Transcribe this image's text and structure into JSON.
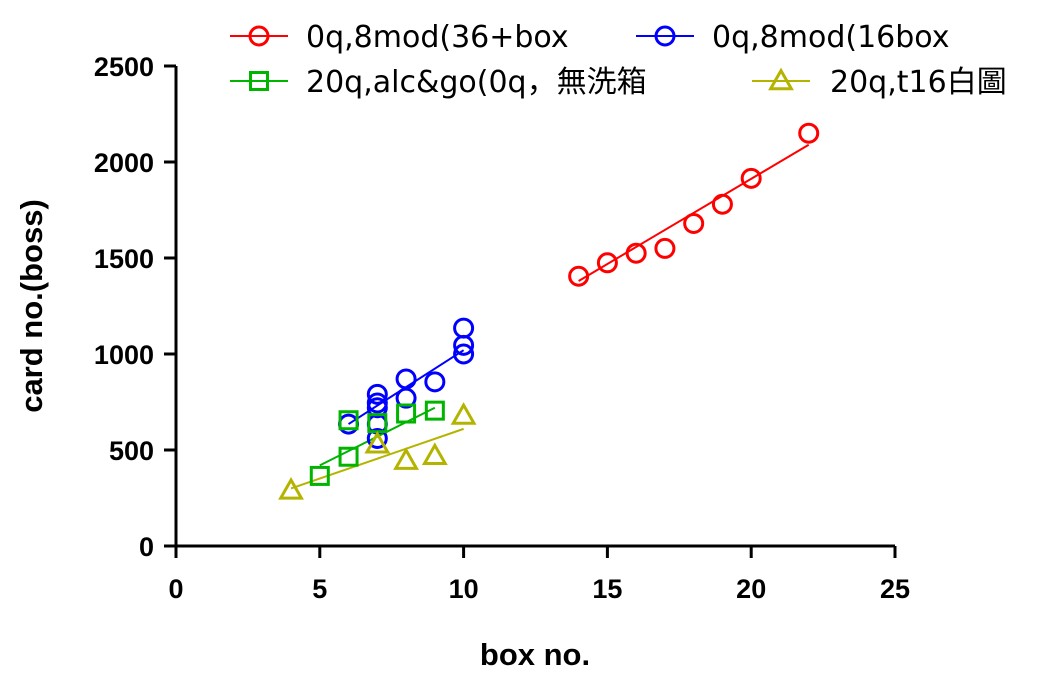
{
  "chart_data": {
    "type": "scatter",
    "title": "",
    "xlabel": "box no.",
    "ylabel": "card no.(boss)",
    "xlim": [
      0,
      25
    ],
    "ylim": [
      0,
      2500
    ],
    "xticks": [
      0,
      5,
      10,
      15,
      20,
      25
    ],
    "yticks": [
      0,
      500,
      1000,
      1500,
      2000,
      2500
    ],
    "grid": false,
    "legend_position": "top",
    "series": [
      {
        "name": "0q,8mod(36+box",
        "color": "#ff0000",
        "marker": "circle",
        "points": [
          [
            14,
            1405
          ],
          [
            15,
            1475
          ],
          [
            16,
            1525
          ],
          [
            17,
            1550
          ],
          [
            18,
            1680
          ],
          [
            19,
            1780
          ],
          [
            20,
            1915
          ],
          [
            22,
            2150
          ]
        ],
        "fit": [
          [
            14,
            1380
          ],
          [
            22,
            2090
          ]
        ]
      },
      {
        "name": "0q,8mod(16box",
        "color": "#0000ff",
        "marker": "circle",
        "points": [
          [
            6,
            635
          ],
          [
            7,
            560
          ],
          [
            7,
            635
          ],
          [
            7,
            720
          ],
          [
            7,
            745
          ],
          [
            7,
            790
          ],
          [
            8,
            770
          ],
          [
            8,
            870
          ],
          [
            9,
            855
          ],
          [
            10,
            1000
          ],
          [
            10,
            1045
          ],
          [
            10,
            1135
          ]
        ],
        "fit": [
          [
            6,
            635
          ],
          [
            10,
            1020
          ]
        ]
      },
      {
        "name": "20q,alc&go(0q，無洗箱",
        "color": "#00b400",
        "marker": "square",
        "points": [
          [
            5,
            365
          ],
          [
            6,
            465
          ],
          [
            6,
            655
          ],
          [
            7,
            640
          ],
          [
            8,
            690
          ],
          [
            9,
            705
          ]
        ],
        "fit": [
          [
            5,
            420
          ],
          [
            9,
            720
          ]
        ]
      },
      {
        "name": "20q,t16白圖",
        "color": "#b4b400",
        "marker": "triangle",
        "points": [
          [
            4,
            290
          ],
          [
            7,
            530
          ],
          [
            8,
            445
          ],
          [
            9,
            470
          ],
          [
            10,
            680
          ]
        ],
        "fit": [
          [
            4,
            300
          ],
          [
            10,
            610
          ]
        ]
      }
    ]
  }
}
